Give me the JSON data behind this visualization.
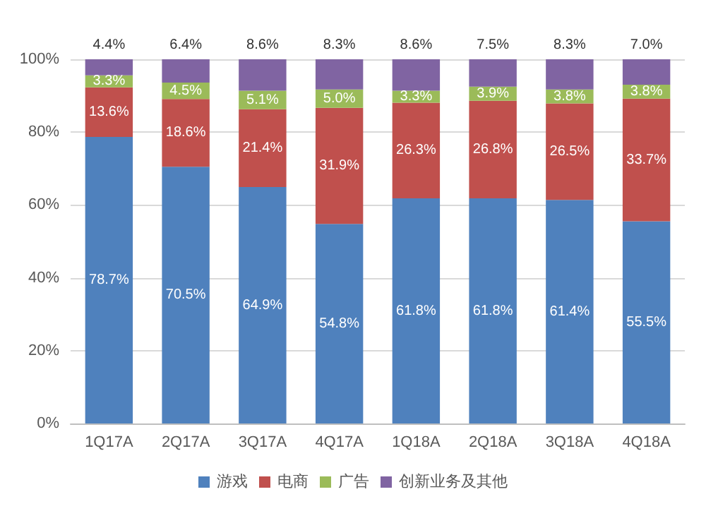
{
  "chart_data": {
    "type": "bar",
    "stacked": true,
    "categories": [
      "1Q17A",
      "2Q17A",
      "3Q17A",
      "4Q17A",
      "1Q18A",
      "2Q18A",
      "3Q18A",
      "4Q18A"
    ],
    "series": [
      {
        "name": "游戏",
        "color": "#4f81bd",
        "values": [
          78.7,
          70.5,
          64.9,
          54.8,
          61.8,
          61.8,
          61.4,
          55.5
        ],
        "value_labels": [
          "78.7%",
          "70.5%",
          "64.9%",
          "54.8%",
          "61.8%",
          "61.8%",
          "61.4%",
          "55.5%"
        ]
      },
      {
        "name": "电商",
        "color": "#c0504d",
        "values": [
          13.6,
          18.6,
          21.4,
          31.9,
          26.3,
          26.8,
          26.5,
          33.7
        ],
        "value_labels": [
          "13.6%",
          "18.6%",
          "21.4%",
          "31.9%",
          "26.3%",
          "26.8%",
          "26.5%",
          "33.7%"
        ]
      },
      {
        "name": "广告",
        "color": "#9bbb59",
        "values": [
          3.3,
          4.5,
          5.1,
          5.0,
          3.3,
          3.9,
          3.8,
          3.8
        ],
        "value_labels": [
          "3.3%",
          "4.5%",
          "5.1%",
          "5.0%",
          "3.3%",
          "3.9%",
          "3.8%",
          "3.8%"
        ]
      },
      {
        "name": "创新业务及其他",
        "color": "#8064a2",
        "values": [
          4.4,
          6.4,
          8.6,
          8.3,
          8.6,
          7.5,
          8.3,
          7.0
        ],
        "value_labels": [
          "4.4%",
          "6.4%",
          "8.6%",
          "8.3%",
          "8.6%",
          "7.5%",
          "8.3%",
          "7.0%"
        ]
      }
    ],
    "ylim": [
      0,
      100
    ],
    "yticks": [
      {
        "value": 0,
        "label": "0%"
      },
      {
        "value": 20,
        "label": "20%"
      },
      {
        "value": 40,
        "label": "40%"
      },
      {
        "value": 60,
        "label": "60%"
      },
      {
        "value": 80,
        "label": "80%"
      },
      {
        "value": 100,
        "label": "100%"
      }
    ],
    "grid": "y",
    "legend": "bottom"
  }
}
